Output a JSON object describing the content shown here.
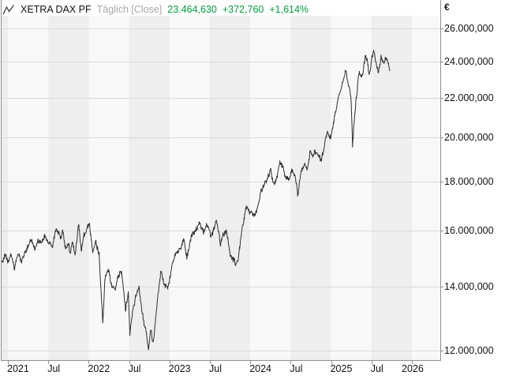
{
  "header": {
    "title": "XETRA DAX PF",
    "subtitle": "Täglich [Close]",
    "last_price": "23.464,630",
    "change_abs": "+372,760",
    "change_pct": "+1,614%"
  },
  "axes": {
    "currency_symbol": "€",
    "y_ticks": [
      {
        "value": 26000,
        "label": "26.000,000"
      },
      {
        "value": 24000,
        "label": "24.000,000"
      },
      {
        "value": 22000,
        "label": "22.000,000"
      },
      {
        "value": 20000,
        "label": "20.000,000"
      },
      {
        "value": 18000,
        "label": "18.000,000"
      },
      {
        "value": 16000,
        "label": "16.000,000"
      },
      {
        "value": 14000,
        "label": "14.000,000"
      },
      {
        "value": 12000,
        "label": "12.000,000"
      }
    ],
    "x_ticks": [
      {
        "t": 0.0,
        "label": "2021"
      },
      {
        "t": 0.5,
        "label": "Jul"
      },
      {
        "t": 1.0,
        "label": "2022"
      },
      {
        "t": 1.5,
        "label": "Jul"
      },
      {
        "t": 2.0,
        "label": "2023"
      },
      {
        "t": 2.5,
        "label": "Jul"
      },
      {
        "t": 3.0,
        "label": "2024"
      },
      {
        "t": 3.5,
        "label": "Jul"
      },
      {
        "t": 4.0,
        "label": "2025"
      },
      {
        "t": 4.5,
        "label": "Jul"
      },
      {
        "t": 5.0,
        "label": "2026"
      }
    ]
  },
  "style": {
    "up_color": "#00a03c",
    "line_color": "#2f2f2f",
    "grid_color": "#dadada",
    "border_color": "#8f8f8f",
    "band_light": "#f8f8f8",
    "band_dark": "#eeeeee",
    "title_color": "#111111",
    "subtitle_color": "#a6a6a6"
  },
  "chart_data": {
    "type": "line",
    "title": "XETRA DAX PF",
    "interval": "Täglich [Close]",
    "currency": "€",
    "last_close": 23464.63,
    "change_abs": 372.76,
    "change_pct": 1.614,
    "y_axis": {
      "scale": "log",
      "ticks": [
        26000,
        24000,
        22000,
        20000,
        18000,
        16000,
        14000,
        12000
      ],
      "range_top": 26800,
      "range_bottom": 11600,
      "grid": true
    },
    "x_axis": {
      "tick_labels": [
        "2021",
        "Jul",
        "2022",
        "Jul",
        "2023",
        "Jul",
        "2024",
        "Jul",
        "2025",
        "Jul",
        "2026"
      ],
      "band_interval": "half-year"
    },
    "legend": "none",
    "series": [
      {
        "name": "XETRA DAX PF Täglich [Close]",
        "points_t_years_from_2021_vs_eur": [
          [
            -0.078,
            14850
          ],
          [
            -0.04,
            15050
          ],
          [
            0.0,
            14800
          ],
          [
            0.04,
            15100
          ],
          [
            0.08,
            14620
          ],
          [
            0.13,
            15150
          ],
          [
            0.17,
            14850
          ],
          [
            0.245,
            15420
          ],
          [
            0.29,
            15700
          ],
          [
            0.33,
            15350
          ],
          [
            0.37,
            15650
          ],
          [
            0.42,
            15450
          ],
          [
            0.45,
            15800
          ],
          [
            0.5,
            15550
          ],
          [
            0.55,
            15350
          ],
          [
            0.58,
            15900
          ],
          [
            0.615,
            16050
          ],
          [
            0.65,
            15750
          ],
          [
            0.68,
            15950
          ],
          [
            0.72,
            15250
          ],
          [
            0.75,
            15550
          ],
          [
            0.765,
            15050
          ],
          [
            0.8,
            15600
          ],
          [
            0.835,
            15200
          ],
          [
            0.875,
            16280
          ],
          [
            0.91,
            15250
          ],
          [
            0.935,
            15700
          ],
          [
            0.97,
            15900
          ],
          [
            1.01,
            16200
          ],
          [
            1.05,
            15350
          ],
          [
            1.09,
            15650
          ],
          [
            1.13,
            15100
          ],
          [
            1.175,
            12850
          ],
          [
            1.2,
            14350
          ],
          [
            1.24,
            14700
          ],
          [
            1.28,
            14000
          ],
          [
            1.32,
            13950
          ],
          [
            1.36,
            14400
          ],
          [
            1.41,
            14550
          ],
          [
            1.455,
            13250
          ],
          [
            1.49,
            13850
          ],
          [
            1.51,
            12450
          ],
          [
            1.55,
            13350
          ],
          [
            1.62,
            13900
          ],
          [
            1.66,
            13200
          ],
          [
            1.7,
            12650
          ],
          [
            1.74,
            11980
          ],
          [
            1.77,
            12550
          ],
          [
            1.8,
            12150
          ],
          [
            1.845,
            13450
          ],
          [
            1.9,
            14500
          ],
          [
            1.93,
            14200
          ],
          [
            1.97,
            13950
          ],
          [
            2.0,
            14150
          ],
          [
            2.04,
            14800
          ],
          [
            2.065,
            15100
          ],
          [
            2.1,
            15350
          ],
          [
            2.135,
            15500
          ],
          [
            2.175,
            15700
          ],
          [
            2.215,
            14900
          ],
          [
            2.26,
            15750
          ],
          [
            2.3,
            15850
          ],
          [
            2.34,
            16000
          ],
          [
            2.38,
            16300
          ],
          [
            2.42,
            15900
          ],
          [
            2.46,
            16100
          ],
          [
            2.515,
            15650
          ],
          [
            2.58,
            16450
          ],
          [
            2.63,
            15600
          ],
          [
            2.67,
            15850
          ],
          [
            2.7,
            15950
          ],
          [
            2.75,
            15250
          ],
          [
            2.79,
            15000
          ],
          [
            2.82,
            14700
          ],
          [
            2.86,
            15200
          ],
          [
            2.9,
            16100
          ],
          [
            2.95,
            16950
          ],
          [
            3.0,
            16750
          ],
          [
            3.045,
            16450
          ],
          [
            3.09,
            16950
          ],
          [
            3.13,
            17450
          ],
          [
            3.17,
            17950
          ],
          [
            3.21,
            18200
          ],
          [
            3.25,
            18450
          ],
          [
            3.3,
            17800
          ],
          [
            3.335,
            18200
          ],
          [
            3.37,
            18850
          ],
          [
            3.41,
            18550
          ],
          [
            3.44,
            18200
          ],
          [
            3.48,
            18150
          ],
          [
            3.52,
            18450
          ],
          [
            3.555,
            18300
          ],
          [
            3.59,
            17350
          ],
          [
            3.63,
            18350
          ],
          [
            3.67,
            18700
          ],
          [
            3.71,
            18650
          ],
          [
            3.74,
            19450
          ],
          [
            3.78,
            19250
          ],
          [
            3.82,
            19300
          ],
          [
            3.87,
            19050
          ],
          [
            3.91,
            19300
          ],
          [
            3.95,
            20400
          ],
          [
            3.98,
            19950
          ],
          [
            4.0,
            19900
          ],
          [
            4.04,
            20900
          ],
          [
            4.08,
            21900
          ],
          [
            4.12,
            22550
          ],
          [
            4.16,
            22950
          ],
          [
            4.18,
            23420
          ],
          [
            4.21,
            22750
          ],
          [
            4.245,
            22160
          ],
          [
            4.258,
            20800
          ],
          [
            4.266,
            19680
          ],
          [
            4.28,
            20600
          ],
          [
            4.3,
            21300
          ],
          [
            4.32,
            22250
          ],
          [
            4.35,
            23400
          ],
          [
            4.39,
            23250
          ],
          [
            4.43,
            24300
          ],
          [
            4.455,
            23900
          ],
          [
            4.47,
            23350
          ],
          [
            4.5,
            24100
          ],
          [
            4.525,
            24620
          ],
          [
            4.555,
            23950
          ],
          [
            4.585,
            23450
          ],
          [
            4.62,
            24300
          ],
          [
            4.65,
            23950
          ],
          [
            4.67,
            24050
          ],
          [
            4.69,
            24200
          ],
          [
            4.71,
            23850
          ],
          [
            4.727,
            23464.63
          ]
        ]
      }
    ]
  }
}
